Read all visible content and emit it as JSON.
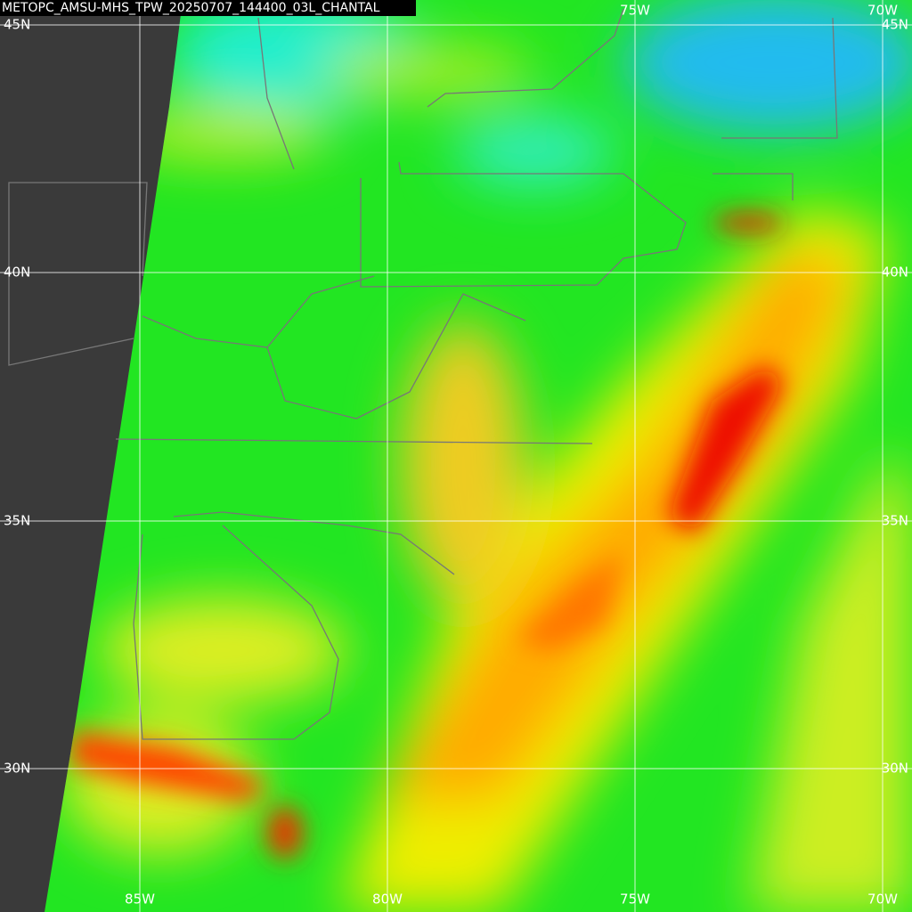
{
  "title": "METOPC_AMSU-MHS_TPW_20250707_144400_03L_CHANTAL",
  "lat_labels": [
    "45N",
    "40N",
    "35N",
    "30N"
  ],
  "lon_labels": [
    "85W",
    "80W",
    "75W",
    "70W"
  ]
}
